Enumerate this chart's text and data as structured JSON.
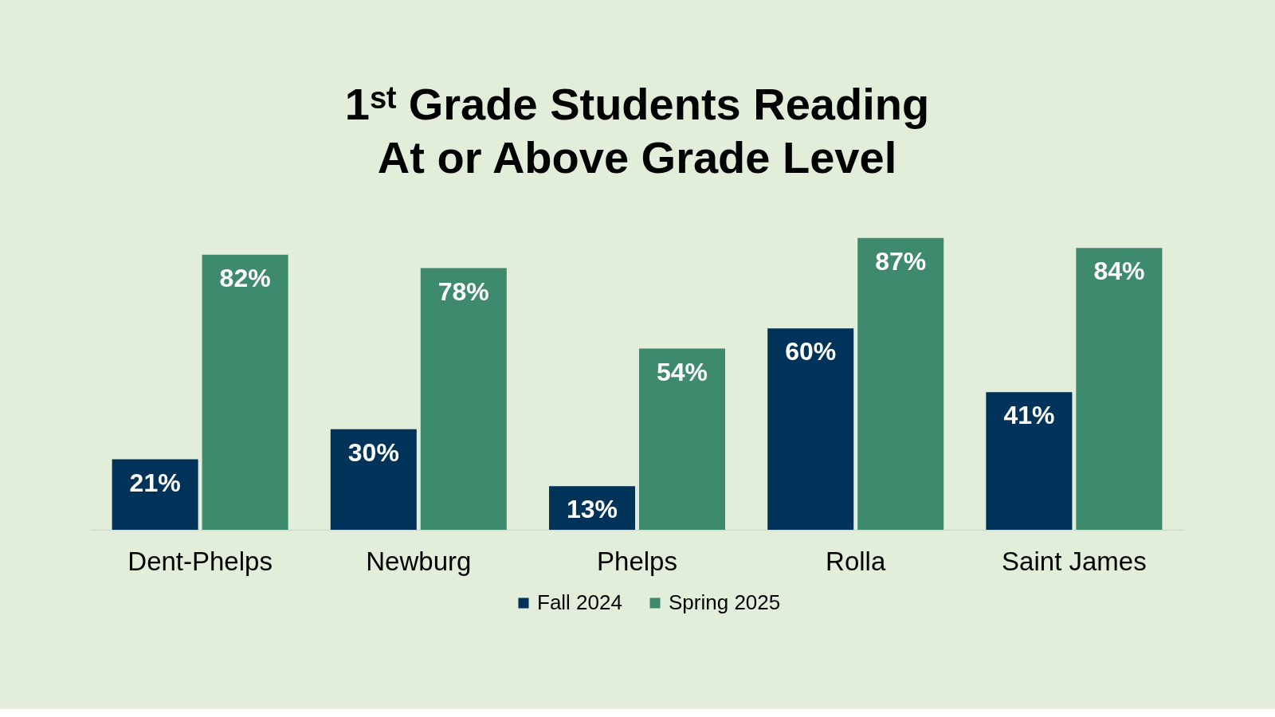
{
  "chart_data": {
    "type": "bar",
    "title": "1ˢᵗ Grade Students Reading\nAt or Above Grade Level",
    "categories": [
      "Dent-Phelps",
      "Newburg",
      "Phelps",
      "Rolla",
      "Saint James"
    ],
    "series": [
      {
        "name": "Fall 2024",
        "color": "#003359",
        "values": [
          21,
          30,
          13,
          60,
          41
        ],
        "value_labels": [
          "21%",
          "30%",
          "13%",
          "60%",
          "41%"
        ]
      },
      {
        "name": "Spring 2025",
        "color": "#3e8a6c",
        "values": [
          82,
          78,
          54,
          87,
          84
        ],
        "value_labels": [
          "82%",
          "78%",
          "54%",
          "87%",
          "84%"
        ]
      }
    ],
    "legend": "bottom"
  }
}
